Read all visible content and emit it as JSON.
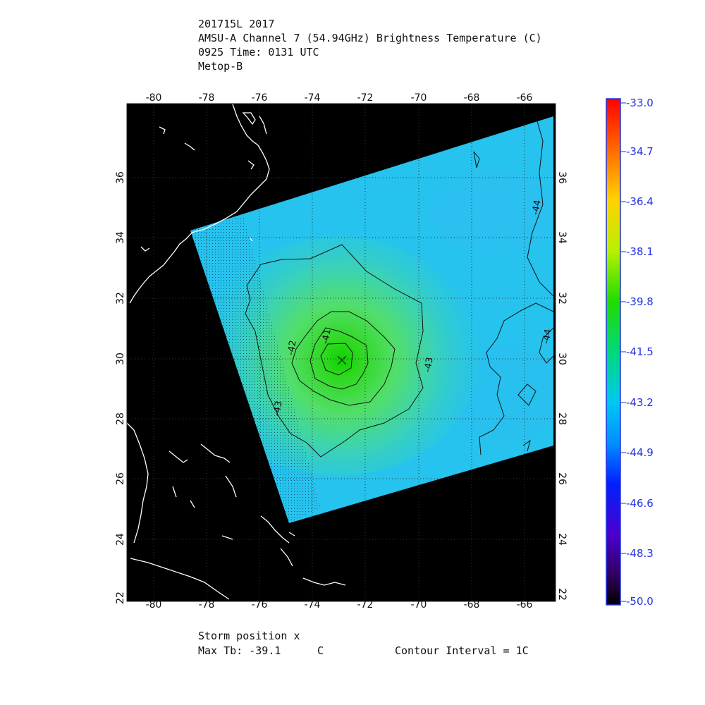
{
  "header": {
    "line1": "201715L 2017",
    "line2": "AMSU-A Channel 7 (54.94GHz) Brightness Temperature (C)",
    "line3": "0925 Time: 0131 UTC",
    "line4": "Metop-B"
  },
  "footer": {
    "storm_position": "Storm position x",
    "max_tb_label": "Max Tb: -39.1",
    "max_tb_unit": "C",
    "contour_interval": "Contour Interval = 1C"
  },
  "map": {
    "lon_ticks": [
      "-80",
      "-78",
      "-76",
      "-74",
      "-72",
      "-70",
      "-68",
      "-66"
    ],
    "lat_ticks": [
      "24",
      "26",
      "28",
      "30",
      "32",
      "34",
      "36"
    ],
    "lat_edge_ticks": [
      "22"
    ],
    "lon_range": [
      -81,
      -65
    ],
    "lat_range": [
      22,
      38
    ],
    "storm_center": {
      "lon": -72.9,
      "lat": 29.9
    },
    "contour_labels": [
      "-41",
      "-42",
      "-43",
      "-43",
      "-44",
      "-44"
    ]
  },
  "colorbar": {
    "ticks": [
      "-33.0",
      "-34.7",
      "-36.4",
      "-38.1",
      "-39.8",
      "-41.5",
      "-43.2",
      "-44.9",
      "-46.6",
      "-48.3",
      "-50.0"
    ],
    "range": [
      -50.0,
      -33.0
    ]
  },
  "colors": {
    "field_bg": "#25c3ee",
    "land": "#000000",
    "coast": "#ffffff",
    "tick_text": "#2233dd"
  }
}
